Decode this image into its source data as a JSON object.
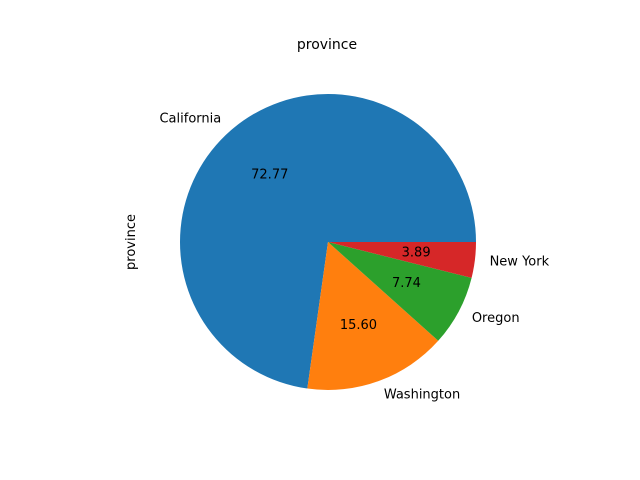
{
  "chart_data": {
    "type": "pie",
    "title": "province",
    "ylabel": "province",
    "slices": [
      {
        "label": "California",
        "value": 72.77,
        "pct_label": "72.77",
        "color": "#1f77b4"
      },
      {
        "label": "Washington",
        "value": 15.6,
        "pct_label": "15.60",
        "color": "#ff7f0e"
      },
      {
        "label": "Oregon",
        "value": 7.74,
        "pct_label": "7.74",
        "color": "#2ca02c"
      },
      {
        "label": "New York",
        "value": 3.89,
        "pct_label": "3.89",
        "color": "#d62728"
      }
    ],
    "start_angle_deg": 0,
    "direction": "counterclockwise",
    "legend": false
  }
}
